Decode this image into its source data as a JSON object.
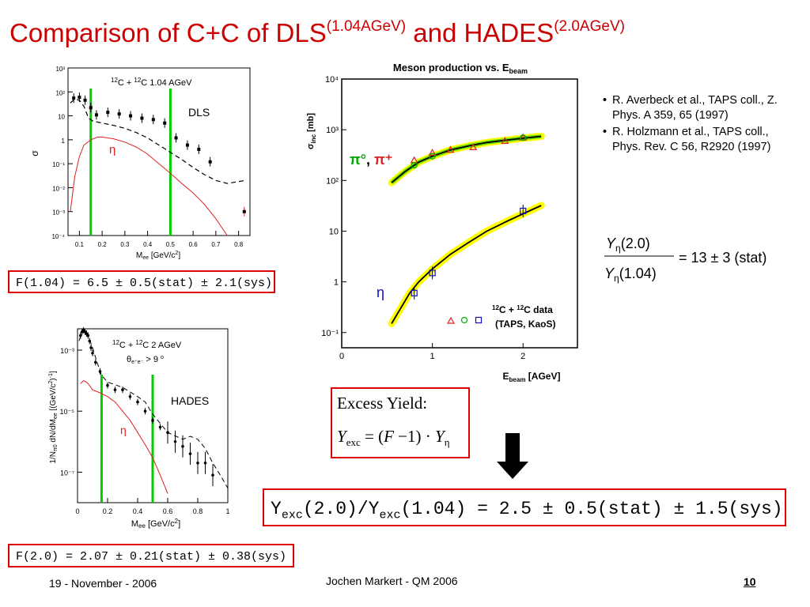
{
  "title": {
    "main": "Comparison of C+C of DLS",
    "sup1": "(1.04AGeV)",
    "mid": " and HADES",
    "sup2": "(2.0AGeV)"
  },
  "boxes": {
    "dls_f": "F(1.04) = 6.5 ± 0.5(stat) ± 2.1(sys)",
    "hades_f": "F(2.0) = 2.07 ± 0.21(stat) ± 0.38(sys)",
    "ratio": {
      "y1": "Y",
      "s1": "exc",
      "mid": "(2.0)/Y",
      "s2": "exc",
      "end": "(1.04) = 2.5 ± 0.5(stat) ± 1.5(sys)"
    }
  },
  "excess": {
    "label": "Excess Yield:",
    "y": "Y",
    "exc": "exc",
    "eq": "= (",
    "f": "F",
    "minus": "−1) ·",
    "y2": "Y",
    "eta": "η"
  },
  "references": [
    "R. Averbeck et al., TAPS coll., Z. Phys. A 359, 65 (1997)",
    "R. Holzmann et al., TAPS coll., Phys. Rev. C 56, R2920 (1997)"
  ],
  "formula": {
    "num_y": "Y",
    "num_sub": "η",
    "num_arg": "(2.0)",
    "den_y": "Y",
    "den_sub": "η",
    "den_arg": "(1.04)",
    "rhs": "= 13 ± 3 (stat)"
  },
  "footer": {
    "date": "19 - November - 2006",
    "center": "Jochen Markert - QM 2006",
    "page": "10"
  },
  "colors": {
    "title": "#cc0000",
    "box": "#e00000",
    "green_line": "#00cc00",
    "eta_curve": "#e02020",
    "yellow_band": "#ffff00",
    "blue": "#1010c0"
  },
  "chart_data": [
    {
      "id": "dls",
      "type": "scatter",
      "title": "12C + 12C 1.04 AGeV",
      "label": "DLS",
      "eta_label": "η",
      "xlabel": "Mee [GeV/c²]",
      "ylabel": "σ",
      "xlim": [
        0.05,
        0.85
      ],
      "ylim_log10": [
        -4,
        3
      ],
      "yscale": "log",
      "xticks": [
        "0.1",
        "0.2",
        "0.3",
        "0.4",
        "0.5",
        "0.6",
        "0.7",
        "0.8"
      ],
      "yticks": [
        "10⁻⁴",
        "10⁻³",
        "10⁻²",
        "10⁻¹",
        "1",
        "10",
        "10²",
        "10³"
      ],
      "vlines": [
        0.15,
        0.5
      ],
      "points": {
        "x": [
          0.075,
          0.1,
          0.125,
          0.15,
          0.175,
          0.225,
          0.275,
          0.325,
          0.375,
          0.425,
          0.475,
          0.525,
          0.575,
          0.625,
          0.675,
          0.825
        ],
        "y": [
          55,
          60,
          45,
          22,
          11,
          14,
          12,
          10,
          8,
          7,
          5,
          1.2,
          0.6,
          0.4,
          0.12,
          0.001
        ]
      },
      "series": [
        {
          "name": "sum",
          "style": "dashed",
          "x": [
            0.06,
            0.08,
            0.1,
            0.12,
            0.14,
            0.16,
            0.2,
            0.25,
            0.3,
            0.35,
            0.4,
            0.45,
            0.5,
            0.55,
            0.6,
            0.65,
            0.7,
            0.75,
            0.8,
            0.83
          ],
          "y": [
            35,
            50,
            45,
            25,
            8,
            6,
            5,
            4,
            3,
            2,
            1.2,
            0.6,
            0.3,
            0.15,
            0.07,
            0.035,
            0.02,
            0.015,
            0.018,
            0.02
          ]
        },
        {
          "name": "eta",
          "style": "solid",
          "x": [
            0.06,
            0.08,
            0.1,
            0.12,
            0.15,
            0.18,
            0.2,
            0.25,
            0.3,
            0.35,
            0.4,
            0.45,
            0.5,
            0.55,
            0.6,
            0.65,
            0.7,
            0.75
          ],
          "y": [
            0.001,
            0.03,
            0.2,
            0.6,
            1.0,
            1.3,
            1.3,
            1.1,
            0.8,
            0.5,
            0.25,
            0.1,
            0.04,
            0.015,
            0.006,
            0.002,
            0.0005,
            0.0001
          ]
        }
      ]
    },
    {
      "id": "hades",
      "type": "scatter",
      "title": "12C + 12C 2 AGeV",
      "cut": "θe+e- > 9 o",
      "label": "HADES",
      "eta_label": "η",
      "xlabel": "Mee [GeV/c²]",
      "ylabel": "1/Nπ0 dN/dMee [(GeV/c²)⁻¹]",
      "xlim": [
        0,
        1
      ],
      "ylim_log10": [
        -8,
        -2.3
      ],
      "yscale": "log",
      "xticks": [
        "0",
        "0.2",
        "0.4",
        "0.6",
        "0.8",
        "1"
      ],
      "yticks": [
        "10⁻³",
        "10⁻⁵",
        "10⁻⁷"
      ],
      "vlines": [
        0.16,
        0.5
      ],
      "points": {
        "x": [
          0.02,
          0.03,
          0.04,
          0.05,
          0.06,
          0.07,
          0.08,
          0.09,
          0.1,
          0.12,
          0.15,
          0.2,
          0.25,
          0.3,
          0.35,
          0.4,
          0.45,
          0.5,
          0.55,
          0.6,
          0.65,
          0.7,
          0.75,
          0.8,
          0.85,
          0.9
        ],
        "y": [
          0.003,
          0.004,
          0.0045,
          0.004,
          0.0035,
          0.003,
          0.002,
          0.0012,
          0.0008,
          0.0004,
          0.0002,
          7e-05,
          5e-05,
          5e-05,
          3e-05,
          2e-05,
          1e-05,
          5e-06,
          3e-06,
          2e-06,
          1e-06,
          7e-07,
          4e-07,
          2e-07,
          2e-07,
          8e-08
        ]
      },
      "series": [
        {
          "name": "sum",
          "style": "dashed",
          "x": [
            0.01,
            0.03,
            0.05,
            0.07,
            0.1,
            0.13,
            0.16,
            0.2,
            0.3,
            0.4,
            0.45,
            0.5,
            0.55,
            0.6,
            0.7,
            0.75,
            0.8,
            0.85,
            0.9,
            0.95,
            1.0
          ],
          "y": [
            0.002,
            0.004,
            0.0045,
            0.003,
            0.0012,
            0.0004,
            0.00015,
            9e-05,
            6e-05,
            3e-05,
            2e-05,
            8e-06,
            4e-06,
            2e-06,
            1.2e-06,
            1.5e-06,
            1.2e-06,
            6e-07,
            2e-07,
            8e-08,
            3e-08
          ]
        },
        {
          "name": "eta",
          "style": "solid",
          "x": [
            0.02,
            0.04,
            0.06,
            0.08,
            0.1,
            0.15,
            0.2,
            0.25,
            0.3,
            0.35,
            0.4,
            0.45,
            0.5,
            0.55,
            0.6
          ],
          "y": [
            8e-05,
            0.0001,
            9e-05,
            7e-05,
            5e-05,
            4e-05,
            3e-05,
            2e-05,
            1e-05,
            5e-06,
            2e-06,
            8e-07,
            3e-07,
            8e-08,
            2e-08
          ]
        }
      ]
    },
    {
      "id": "meson",
      "type": "scatter",
      "title": "Meson production vs. Ebeam",
      "xlabel": "Ebeam [AGeV]",
      "ylabel": "σinc [mb]",
      "xlim": [
        0,
        2.6
      ],
      "ylim_log10": [
        -1.3,
        4
      ],
      "yscale": "log",
      "xticks": [
        "0",
        "1",
        "2"
      ],
      "yticks": [
        "10⁻¹",
        "1",
        "10",
        "10²",
        "10³",
        "10⁴"
      ],
      "pi_label": "π°, π⁺",
      "eta_label": "η",
      "legend": [
        "12C + 12C data",
        "(TAPS, KaoS)"
      ],
      "series": [
        {
          "name": "pi",
          "style": "curve",
          "x": [
            0.55,
            0.7,
            0.85,
            1.0,
            1.2,
            1.4,
            1.6,
            1.8,
            2.0,
            2.2
          ],
          "y": [
            90,
            150,
            230,
            300,
            400,
            480,
            560,
            620,
            680,
            740
          ]
        },
        {
          "name": "eta",
          "style": "curve",
          "x": [
            0.55,
            0.65,
            0.75,
            0.85,
            1.0,
            1.2,
            1.4,
            1.6,
            1.8,
            2.0,
            2.2
          ],
          "y": [
            0.15,
            0.3,
            0.6,
            1.0,
            1.8,
            3.5,
            6,
            10,
            15,
            22,
            32
          ]
        },
        {
          "name": "pi0_TAPS",
          "marker": "circle",
          "x": [
            0.8,
            1.0,
            2.0
          ],
          "y": [
            200,
            300,
            700
          ]
        },
        {
          "name": "piplus_KaoS",
          "marker": "triangle",
          "x": [
            0.8,
            1.0,
            1.2,
            1.45,
            1.8,
            2.0
          ],
          "y": [
            250,
            350,
            400,
            450,
            600,
            700
          ]
        },
        {
          "name": "eta_TAPS",
          "marker": "square",
          "x": [
            0.8,
            1.0,
            2.0
          ],
          "y": [
            0.6,
            1.5,
            25
          ]
        }
      ]
    }
  ]
}
